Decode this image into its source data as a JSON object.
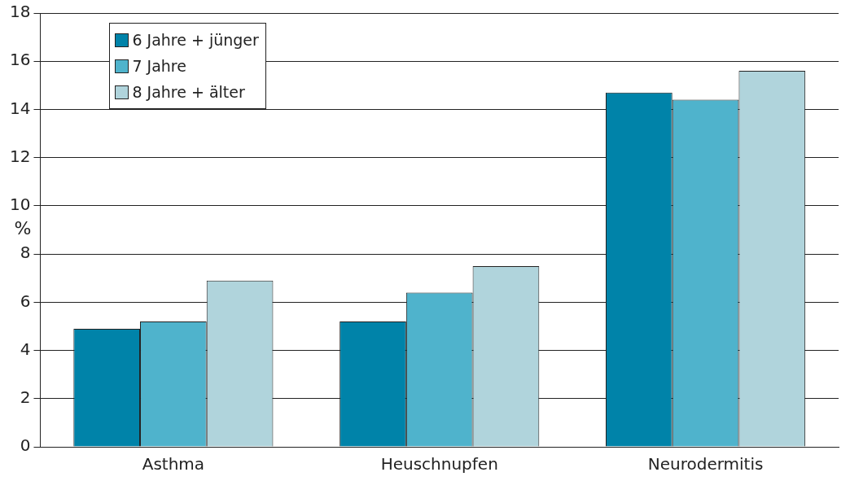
{
  "chart_data": {
    "type": "bar",
    "ylabel": "%",
    "categories": [
      "Asthma",
      "Heuschnupfen",
      "Neurodermitis"
    ],
    "series": [
      {
        "name": "6 Jahre + jünger",
        "color": "#0083a9",
        "values": [
          4.9,
          5.2,
          14.7
        ]
      },
      {
        "name": "7 Jahre",
        "color": "#4fb3cc",
        "values": [
          5.2,
          6.4,
          14.4
        ]
      },
      {
        "name": "8 Jahre + älter",
        "color": "#b0d4dc",
        "values": [
          6.9,
          7.5,
          15.6
        ]
      }
    ],
    "ylim": [
      0,
      18
    ],
    "yticks": [
      0,
      2,
      4,
      6,
      8,
      10,
      12,
      14,
      16,
      18
    ],
    "grid": "y",
    "legend": "top left"
  }
}
